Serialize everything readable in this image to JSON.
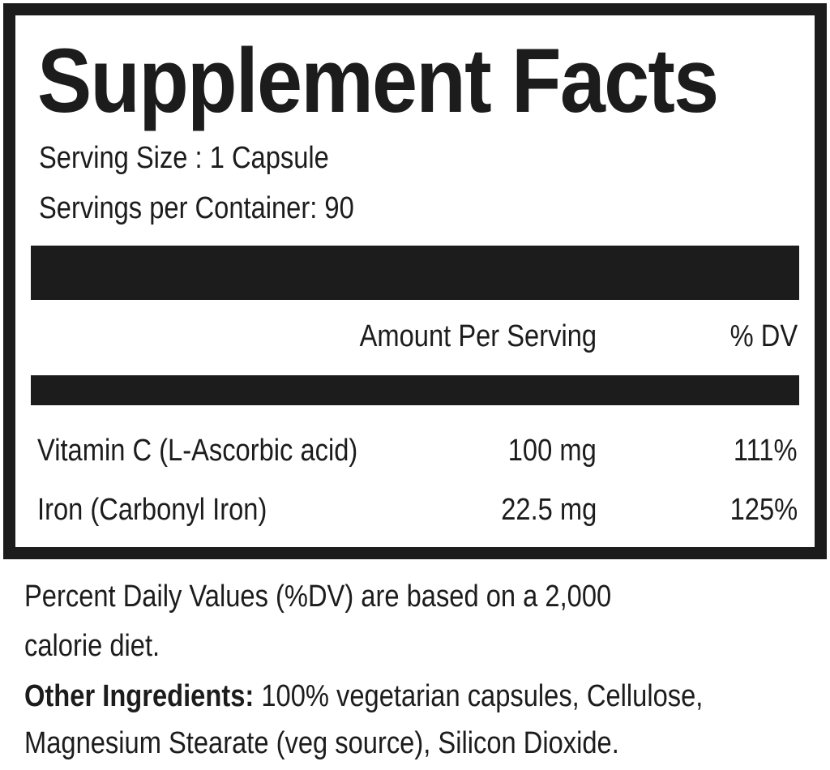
{
  "title": "Supplement Facts",
  "serving_size": "Serving Size : 1 Capsule",
  "servings_per_container": "Servings per Container: 90",
  "header": {
    "amount": "Amount Per Serving",
    "dv": "% DV"
  },
  "rows": [
    {
      "name": "Vitamin C (L-Ascorbic acid)",
      "amount": "100 mg",
      "dv": "111%"
    },
    {
      "name": "Iron (Carbonyl Iron)",
      "amount": "22.5 mg",
      "dv": "125%"
    }
  ],
  "footnote_line1": "Percent Daily Values (%DV) are based on a 2,000",
  "footnote_line2": "calorie diet.",
  "other_label": "Other Ingredients:",
  "other_line1": "100% vegetarian capsules, Cellulose,",
  "other_line2": "Magnesium Stearate (veg source), Silicon Dioxide."
}
